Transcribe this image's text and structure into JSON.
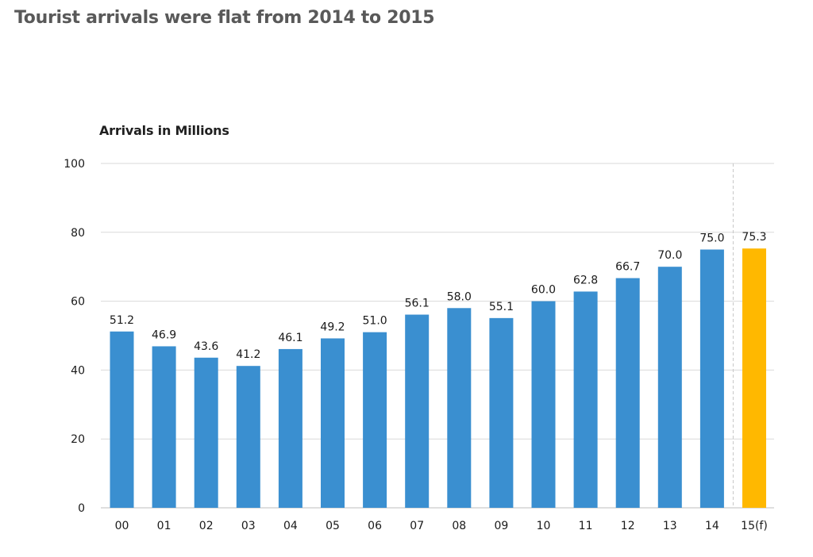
{
  "title": "Tourist arrivals were flat from 2014 to 2015",
  "chart_data": {
    "type": "bar",
    "ylabel": "Arrivals in Millions",
    "xlabel": "",
    "ylim": [
      0,
      100
    ],
    "yticks": [
      "0",
      "20",
      "40",
      "60",
      "80",
      "100"
    ],
    "grid": true,
    "categories": [
      "00",
      "01",
      "02",
      "03",
      "04",
      "05",
      "06",
      "07",
      "08",
      "09",
      "10",
      "11",
      "12",
      "13",
      "14",
      "15(f)"
    ],
    "values": [
      51.2,
      46.9,
      43.6,
      41.2,
      46.1,
      49.2,
      51.0,
      56.1,
      58.0,
      55.1,
      60.0,
      62.8,
      66.7,
      70.0,
      75.0,
      75.3
    ],
    "data_labels": [
      "51.2",
      "46.9",
      "43.6",
      "41.2",
      "46.1",
      "49.2",
      "51.0",
      "56.1",
      "58.0",
      "55.1",
      "60.0",
      "62.8",
      "66.7",
      "70.0",
      "75.0",
      "75.3"
    ],
    "forecast_index": 15,
    "colors": {
      "bar": "#3a8fd0",
      "forecast": "#ffb800",
      "grid": "#d9d9d9",
      "divider": "#c8c8c8"
    }
  }
}
